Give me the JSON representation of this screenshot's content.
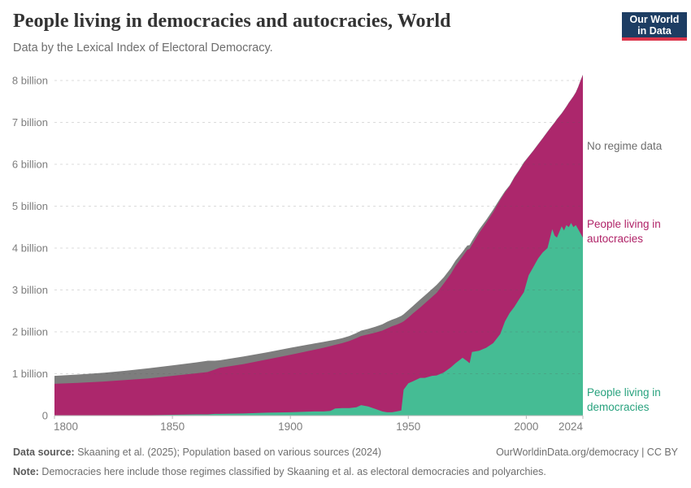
{
  "header": {
    "title": "People living in democracies and autocracies, World",
    "subtitle": "Data by the Lexical Index of Electoral Democracy.",
    "logo": {
      "line1": "Our World",
      "line2": "in Data"
    }
  },
  "annotations": {
    "no_regime_data": "No regime data",
    "autocracies": "People living in autocracies",
    "democracies": "People living in democracies"
  },
  "footer": {
    "data_source_label": "Data source:",
    "data_source_text": " Skaaning et al. (2025); Population based on various sources (2024)",
    "link_text": "OurWorldinData.org/democracy | CC BY",
    "note_label": "Note:",
    "note_text": " Democracies here include those regimes classified by Skaaning et al. as electoral democracies and polyarchies."
  },
  "colors": {
    "democracies_area": "#45bc94",
    "autocracies_area": "#ac276c",
    "no_regime_data_area": "#7d7d7d",
    "democracies_label": "#28a27e",
    "autocracies_label": "#b02368",
    "no_regime_data_label": "#6e6e6e",
    "axis_text": "#7d7d7d",
    "axis_line": "#b9b9b9",
    "logo_navy": "#1d3d63",
    "logo_red": "#dc354b"
  },
  "chart_data": {
    "type": "area",
    "stacked": true,
    "title": "People living in democracies and autocracies, World",
    "subtitle": "Data by the Lexical Index of Electoral Democracy.",
    "xlabel": "",
    "ylabel": "",
    "unit": "billion people",
    "grid": true,
    "legend_position": "right-annotations",
    "xlim": [
      1800,
      2024
    ],
    "ylim": [
      0,
      8.4
    ],
    "x_ticks": [
      1800,
      1850,
      1900,
      1950,
      2000,
      2024
    ],
    "y_tick_values": [
      0,
      1,
      2,
      3,
      4,
      5,
      6,
      7,
      8
    ],
    "y_tick_labels": [
      "0",
      "1 billion",
      "2 billion",
      "3 billion",
      "4 billion",
      "5 billion",
      "6 billion",
      "7 billion",
      "8 billion"
    ],
    "x": [
      1800,
      1810,
      1820,
      1830,
      1840,
      1850,
      1860,
      1865,
      1868,
      1870,
      1880,
      1890,
      1900,
      1910,
      1914,
      1917,
      1919,
      1922,
      1925,
      1928,
      1930,
      1933,
      1936,
      1939,
      1941,
      1943,
      1945,
      1947,
      1948,
      1950,
      1952,
      1955,
      1957,
      1960,
      1962,
      1965,
      1968,
      1970,
      1973,
      1975,
      1976,
      1977,
      1980,
      1983,
      1986,
      1989,
      1991,
      1993,
      1995,
      1997,
      1999,
      2001,
      2003,
      2005,
      2007,
      2009,
      2011,
      2012,
      2013,
      2015,
      2016,
      2017,
      2018,
      2019,
      2020,
      2021,
      2022,
      2023,
      2024
    ],
    "series": [
      {
        "name": "People living in democracies",
        "color_key": "democracies_area",
        "values": [
          0,
          0,
          0,
          0.01,
          0.01,
          0.02,
          0.03,
          0.03,
          0.04,
          0.04,
          0.05,
          0.07,
          0.08,
          0.1,
          0.1,
          0.11,
          0.17,
          0.18,
          0.18,
          0.2,
          0.25,
          0.22,
          0.16,
          0.1,
          0.08,
          0.08,
          0.1,
          0.12,
          0.62,
          0.77,
          0.82,
          0.9,
          0.9,
          0.95,
          0.96,
          1.03,
          1.15,
          1.25,
          1.38,
          1.3,
          1.25,
          1.52,
          1.55,
          1.62,
          1.73,
          1.95,
          2.25,
          2.45,
          2.6,
          2.78,
          2.95,
          3.35,
          3.55,
          3.75,
          3.9,
          4.0,
          4.45,
          4.3,
          4.25,
          4.52,
          4.42,
          4.55,
          4.5,
          4.6,
          4.5,
          4.55,
          4.45,
          4.35,
          4.25
        ]
      },
      {
        "name": "People living in autocracies",
        "color_key": "autocracies_area",
        "values": [
          0.76,
          0.78,
          0.81,
          0.84,
          0.88,
          0.93,
          0.98,
          1.01,
          1.06,
          1.1,
          1.18,
          1.27,
          1.37,
          1.47,
          1.52,
          1.55,
          1.52,
          1.55,
          1.6,
          1.65,
          1.65,
          1.72,
          1.82,
          1.93,
          2.0,
          2.05,
          2.07,
          2.1,
          1.63,
          1.57,
          1.62,
          1.68,
          1.78,
          1.88,
          1.97,
          2.12,
          2.23,
          2.32,
          2.42,
          2.66,
          2.73,
          2.56,
          2.81,
          2.98,
          3.13,
          3.2,
          3.08,
          3.03,
          3.08,
          3.07,
          3.08,
          2.83,
          2.77,
          2.72,
          2.72,
          2.77,
          2.47,
          2.69,
          2.82,
          2.69,
          2.87,
          2.82,
          2.96,
          2.94,
          3.12,
          3.16,
          3.39,
          3.64,
          3.88
        ]
      },
      {
        "name": "No regime data",
        "color_key": "no_regime_data_area",
        "values": [
          0.19,
          0.2,
          0.21,
          0.22,
          0.24,
          0.25,
          0.26,
          0.27,
          0.21,
          0.18,
          0.18,
          0.17,
          0.17,
          0.15,
          0.14,
          0.13,
          0.12,
          0.12,
          0.12,
          0.12,
          0.13,
          0.13,
          0.14,
          0.15,
          0.16,
          0.16,
          0.16,
          0.16,
          0.17,
          0.18,
          0.18,
          0.19,
          0.19,
          0.19,
          0.19,
          0.15,
          0.14,
          0.13,
          0.11,
          0.1,
          0.09,
          0.09,
          0.08,
          0.07,
          0.06,
          0.04,
          0.03,
          0.02,
          0.02,
          0.02,
          0.02,
          0.01,
          0.01,
          0.01,
          0.01,
          0.01,
          0.01,
          0.01,
          0.01,
          0.01,
          0.01,
          0.01,
          0.01,
          0.01,
          0.01,
          0.01,
          0.01,
          0.01,
          0.01
        ]
      }
    ]
  }
}
